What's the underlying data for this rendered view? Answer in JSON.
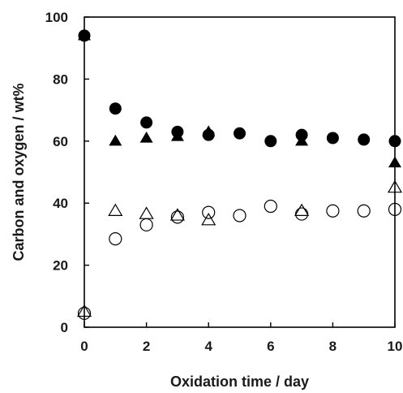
{
  "chart_data": {
    "type": "scatter",
    "title": "",
    "xlabel": "Oxidation time / day",
    "ylabel": "Carbon and oxygen / wt%",
    "xlim": [
      0,
      10
    ],
    "ylim": [
      0,
      100
    ],
    "xticks": [
      "0",
      "2",
      "4",
      "6",
      "8",
      "10"
    ],
    "yticks": [
      "0",
      "20",
      "40",
      "60",
      "80",
      "100"
    ],
    "grid": false,
    "legend": "none",
    "series": [
      {
        "marker": "filled-circle",
        "color": "#000000",
        "points": [
          [
            0,
            94
          ],
          [
            1,
            70.5
          ],
          [
            2,
            66
          ],
          [
            3,
            63
          ],
          [
            4,
            62
          ],
          [
            5,
            62.5
          ],
          [
            6,
            60
          ],
          [
            7,
            62
          ],
          [
            8,
            61
          ],
          [
            9,
            60.5
          ],
          [
            10,
            60
          ]
        ]
      },
      {
        "marker": "filled-triangle",
        "color": "#000000",
        "points": [
          [
            0,
            94
          ],
          [
            1,
            60
          ],
          [
            2,
            61
          ],
          [
            3,
            61.5
          ],
          [
            4,
            63
          ],
          [
            7,
            60
          ],
          [
            10,
            53
          ]
        ]
      },
      {
        "marker": "open-circle",
        "color": "#000000",
        "points": [
          [
            0,
            4.5
          ],
          [
            1,
            28.5
          ],
          [
            2,
            33
          ],
          [
            3,
            35.5
          ],
          [
            4,
            37
          ],
          [
            5,
            36
          ],
          [
            6,
            39
          ],
          [
            7,
            36.5
          ],
          [
            8,
            37.5
          ],
          [
            9,
            37.5
          ],
          [
            10,
            38
          ]
        ]
      },
      {
        "marker": "open-triangle",
        "color": "#000000",
        "points": [
          [
            0,
            5
          ],
          [
            1,
            37.5
          ],
          [
            2,
            36.5
          ],
          [
            3,
            36
          ],
          [
            4,
            34.5
          ],
          [
            7,
            37.5
          ],
          [
            10,
            45
          ]
        ]
      }
    ]
  }
}
